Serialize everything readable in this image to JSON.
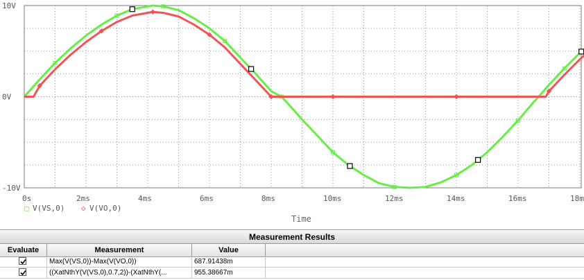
{
  "plot": {
    "y_axis": {
      "top_label": "10V",
      "mid_label": "0V",
      "bottom_label": "-10V"
    },
    "x_axis": {
      "tick_labels": [
        "0s",
        "2ms",
        "4ms",
        "6ms",
        "8ms",
        "10ms",
        "12ms",
        "14ms",
        "16ms",
        "18ms"
      ],
      "title": "Time"
    },
    "legend": [
      {
        "symbol": "□",
        "label": "V(VS,0)",
        "color": "#66ee44"
      },
      {
        "symbol": "◇",
        "label": "V(VO,0)",
        "color": "#ee5555"
      }
    ],
    "background": "#ffffff",
    "grid_color": "#9a9a9a"
  },
  "chart_data": {
    "type": "line",
    "xlabel": "Time",
    "x_units": "ms",
    "xlim": [
      0,
      18.2
    ],
    "ylim": [
      -10,
      10
    ],
    "y_units": "V",
    "grid": true,
    "legend_position": "bottom-left",
    "series": [
      {
        "name": "V(VS,0)",
        "color": "#66ee44",
        "x": [
          0,
          0.5,
          1,
          1.5,
          2,
          2.5,
          3,
          3.5,
          4,
          4.1667,
          4.5,
          5,
          5.5,
          6,
          6.5,
          7,
          7.5,
          8,
          8.3333,
          8.5,
          9,
          9.5,
          10,
          10.5,
          11,
          11.5,
          12,
          12.5,
          13,
          13.5,
          14,
          14.5,
          15,
          15.5,
          16,
          16.5,
          16.6667,
          17,
          17.5,
          18,
          18.2
        ],
        "y": [
          0,
          1.9,
          3.7,
          5.3,
          6.7,
          7.9,
          8.9,
          9.6,
          9.9,
          10,
          9.9,
          9.5,
          8.6,
          7.5,
          6.1,
          4.3,
          2.5,
          0.6,
          0,
          -0.6,
          -2.5,
          -4.3,
          -6.1,
          -7.5,
          -8.6,
          -9.5,
          -9.9,
          -10,
          -9.9,
          -9.4,
          -8.6,
          -7.5,
          -6.1,
          -4.4,
          -2.6,
          -0.6,
          0,
          1.3,
          3.1,
          4.8,
          5.4
        ]
      },
      {
        "name": "V(VO,0)",
        "color": "#ee5555",
        "x": [
          0,
          0.3,
          0.5,
          1,
          1.5,
          2,
          2.5,
          3,
          3.5,
          4,
          4.1667,
          4.5,
          5,
          5.5,
          6,
          6.5,
          7,
          7.5,
          8,
          8.2,
          8.5,
          9,
          10,
          11,
          12,
          13,
          14,
          15,
          16,
          16.9,
          17,
          17.5,
          18,
          18.2
        ],
        "y": [
          0,
          0,
          1.2,
          3.0,
          4.6,
          6.0,
          7.2,
          8.2,
          8.9,
          9.2,
          9.3,
          9.2,
          8.8,
          7.9,
          6.8,
          5.4,
          3.6,
          1.8,
          0,
          0,
          0,
          0,
          0,
          0,
          0,
          0,
          0,
          0,
          0,
          0,
          0.6,
          2.4,
          4.1,
          4.7
        ]
      }
    ],
    "cursor_markers_ms": [
      3.5,
      7.35,
      10.55,
      14.7,
      18.05
    ]
  },
  "measurements": {
    "title": "Measurement Results",
    "columns": [
      "Evaluate",
      "Measurement",
      "Value"
    ],
    "rows": [
      {
        "evaluate": true,
        "measurement": "Max(V(VS,0))-Max(V(VO,0))",
        "value": "687.91438m"
      },
      {
        "evaluate": true,
        "measurement": "((XatNthY(V(VS,0),0.7,2))-(XatNthY(...",
        "value": "955.38667m"
      }
    ]
  }
}
